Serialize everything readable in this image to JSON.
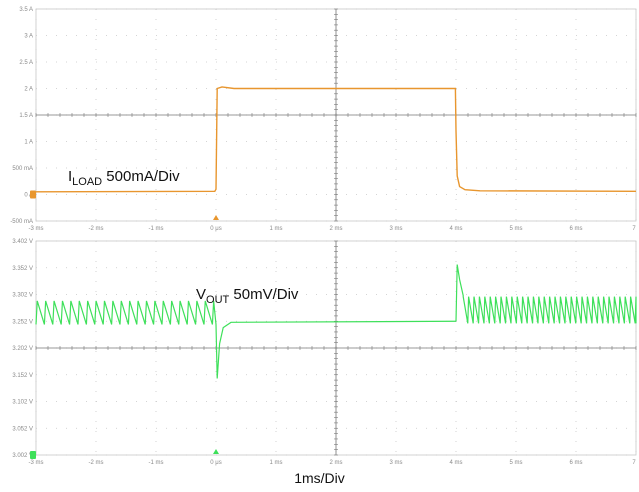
{
  "chart_data": [
    {
      "type": "line",
      "panel": "load-current",
      "annotation": {
        "main": "I",
        "sub": "LOAD",
        "rest": " 500mA/Div"
      },
      "y_ticks": [
        "3.5 A",
        "3 A",
        "2.5 A",
        "2 A",
        "1.5 A",
        "1 A",
        "500 mA",
        "0 A",
        "-500 mA"
      ],
      "x_ticks": [
        "-3 ms",
        "-2 ms",
        "-1 ms",
        "0 μs",
        "1 ms",
        "2 ms",
        "3 ms",
        "4 ms",
        "5 ms",
        "6 ms",
        "7"
      ],
      "ylim": [
        -0.5,
        3.5
      ],
      "xlim": [
        -3,
        7
      ],
      "series": [
        {
          "color": "#e8962e",
          "points": [
            [
              -3,
              0.05
            ],
            [
              -0.02,
              0.06
            ],
            [
              0.0,
              0.1
            ],
            [
              0.02,
              2.0
            ],
            [
              0.1,
              2.03
            ],
            [
              0.3,
              2.0
            ],
            [
              3.99,
              2.0
            ],
            [
              4.0,
              1.2
            ],
            [
              4.02,
              0.35
            ],
            [
              4.06,
              0.15
            ],
            [
              4.15,
              0.09
            ],
            [
              4.4,
              0.07
            ],
            [
              7,
              0.06
            ]
          ]
        }
      ],
      "grid": true
    },
    {
      "type": "line",
      "panel": "output-voltage",
      "annotation": {
        "main": "V",
        "sub": "OUT",
        "rest": " 50mV/Div"
      },
      "y_ticks": [
        "3.402 V",
        "3.352 V",
        "3.302 V",
        "3.252 V",
        "3.202 V",
        "3.152 V",
        "3.102 V",
        "3.052 V",
        "3.002 V"
      ],
      "x_ticks": [
        "-3 ms",
        "-2 ms",
        "-1 ms",
        "0 μs",
        "1 ms",
        "2 ms",
        "3 ms",
        "4 ms",
        "5 ms",
        "6 ms",
        "7"
      ],
      "ylim": [
        3.002,
        3.402
      ],
      "xlim": [
        -3,
        7
      ],
      "series": [
        {
          "color": "#3ee05a",
          "ripple_before_step": {
            "from_ms": -3,
            "to_ms": 0,
            "period_ms": 0.14,
            "low_v": 3.246,
            "high_v": 3.29
          },
          "transient_on_load_step": [
            [
              0.0,
              3.246
            ],
            [
              0.02,
              3.145
            ],
            [
              0.06,
              3.21
            ],
            [
              0.12,
              3.24
            ],
            [
              0.25,
              3.25
            ],
            [
              4.0,
              3.252
            ]
          ],
          "steady_noise_v": 0.004,
          "transient_on_load_release": [
            [
              4.0,
              3.252
            ],
            [
              4.02,
              3.358
            ],
            [
              4.06,
              3.33
            ],
            [
              4.12,
              3.3
            ]
          ],
          "ripple_after_release": {
            "from_ms": 4.12,
            "to_ms": 7,
            "period_ms": 0.09,
            "low_v": 3.248,
            "high_v": 3.298
          }
        }
      ],
      "grid": true
    }
  ],
  "x_axis_label": "1ms/Div",
  "colors": {
    "current_trace": "#e8962e",
    "voltage_trace": "#3ee05a",
    "grid": "#c8c8c8",
    "axis": "#777777"
  }
}
